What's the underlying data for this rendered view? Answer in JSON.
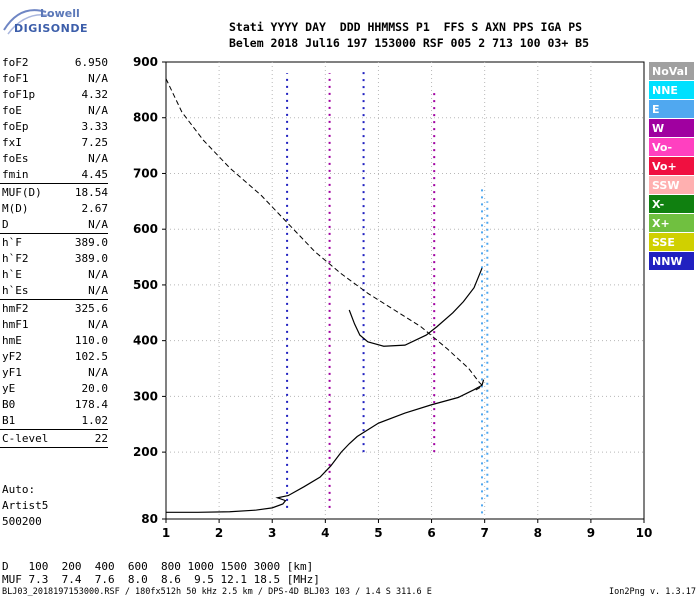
{
  "header": {
    "logo_top": "Lowell",
    "logo_bottom": "DIGISONDE",
    "line1": "Stati YYYY DAY  DDD HHMMSS P1  FFS S AXN PPS IGA PS",
    "line2": "Belem 2018 Jul16 197 153000 RSF 005 2 713 100 03+ B5"
  },
  "params": [
    {
      "label": "foF2",
      "value": "6.950"
    },
    {
      "label": "foF1",
      "value": "N/A"
    },
    {
      "label": "foF1p",
      "value": "4.32"
    },
    {
      "label": "foE",
      "value": "N/A"
    },
    {
      "label": "foEp",
      "value": "3.33"
    },
    {
      "label": "fxI",
      "value": "7.25"
    },
    {
      "label": "foEs",
      "value": "N/A"
    },
    {
      "label": "fmin",
      "value": "4.45"
    },
    {
      "sep": true
    },
    {
      "label": "MUF(D)",
      "value": "18.54"
    },
    {
      "label": "M(D)",
      "value": "2.67"
    },
    {
      "label": "D",
      "value": "N/A"
    },
    {
      "sep": true
    },
    {
      "label": "h`F",
      "value": "389.0"
    },
    {
      "label": "h`F2",
      "value": "389.0"
    },
    {
      "label": "h`E",
      "value": "N/A"
    },
    {
      "label": "h`Es",
      "value": "N/A"
    },
    {
      "sep": true
    },
    {
      "label": "hmF2",
      "value": "325.6"
    },
    {
      "label": "hmF1",
      "value": "N/A"
    },
    {
      "label": "hmE",
      "value": "110.0"
    },
    {
      "label": "yF2",
      "value": "102.5"
    },
    {
      "label": "yF1",
      "value": "N/A"
    },
    {
      "label": "yE",
      "value": "20.0"
    },
    {
      "label": "B0",
      "value": "178.4"
    },
    {
      "label": "B1",
      "value": "1.02"
    },
    {
      "sep": true
    },
    {
      "label": "C-level",
      "value": "22"
    },
    {
      "sep": true
    }
  ],
  "extra": {
    "auto": "Auto:",
    "artist": "Artist5",
    "version_code": "500200"
  },
  "legend": [
    {
      "label": "NoVal",
      "color": "#a0a0a0"
    },
    {
      "label": "NNE",
      "color": "#00e0ff"
    },
    {
      "label": "E",
      "color": "#50a8f0"
    },
    {
      "label": "W",
      "color": "#a000a0"
    },
    {
      "label": "Vo-",
      "color": "#ff40c0"
    },
    {
      "label": "Vo+",
      "color": "#f01040"
    },
    {
      "label": "SSW",
      "color": "#ffb0b0"
    },
    {
      "label": "X-",
      "color": "#108010"
    },
    {
      "label": "X+",
      "color": "#70c040"
    },
    {
      "label": "SSE",
      "color": "#d0d000"
    },
    {
      "label": "NNW",
      "color": "#2020c0"
    }
  ],
  "chart_data": {
    "type": "scatter",
    "x_ticks": [
      "1",
      "2",
      "3",
      "4",
      "5",
      "6",
      "7",
      "8",
      "9",
      "10"
    ],
    "y_ticks": [
      "80",
      "200",
      "300",
      "400",
      "500",
      "600",
      "700",
      "800",
      "900"
    ],
    "xlim": [
      1,
      10
    ],
    "ylim": [
      80,
      900
    ],
    "grid": true,
    "trace_solid": {
      "x": [
        1.0,
        1.6,
        2.2,
        2.7,
        3.0,
        3.2,
        3.25,
        3.1,
        3.3,
        3.6,
        3.9,
        4.1,
        4.3,
        4.45,
        4.6,
        5.0,
        5.5,
        6.0,
        6.5,
        6.8,
        6.95,
        6.98
      ],
      "y": [
        92,
        92,
        93,
        96,
        100,
        107,
        113,
        118,
        122,
        138,
        155,
        175,
        200,
        215,
        228,
        252,
        270,
        285,
        298,
        312,
        320,
        330
      ]
    },
    "trace_oplus": {
      "x": [
        4.45,
        4.55,
        4.65,
        4.8,
        5.1,
        5.5,
        5.9,
        6.1,
        6.4,
        6.6,
        6.8,
        6.95
      ],
      "y": [
        455,
        430,
        410,
        398,
        390,
        392,
        410,
        425,
        450,
        470,
        495,
        530
      ]
    },
    "profile_dashed": {
      "x": [
        1.0,
        1.3,
        1.7,
        2.2,
        2.8,
        3.3,
        3.8,
        4.3,
        4.8,
        5.3,
        5.8,
        6.3,
        6.7,
        6.9,
        6.95,
        6.9,
        6.8
      ],
      "y": [
        870,
        810,
        760,
        710,
        660,
        610,
        560,
        520,
        485,
        455,
        425,
        385,
        350,
        325,
        320,
        315,
        310
      ]
    },
    "echoes": [
      {
        "color": "#50a8f0",
        "x": 6.95,
        "y1": 90,
        "y2": 680
      },
      {
        "color": "#50a8f0",
        "x": 7.05,
        "y1": 120,
        "y2": 650
      },
      {
        "color": "#a000a0",
        "x": 6.05,
        "y1": 200,
        "y2": 850
      },
      {
        "color": "#2020c0",
        "x": 4.72,
        "y1": 200,
        "y2": 890
      },
      {
        "color": "#2020c0",
        "x": 3.28,
        "y1": 100,
        "y2": 880
      },
      {
        "color": "#a000a0",
        "x": 4.08,
        "y1": 100,
        "y2": 880
      }
    ]
  },
  "d_table": {
    "d_label": "D",
    "d_values": "100  200  400  600  800 1000 1500 3000 [km]",
    "muf_label": "MUF",
    "muf_values": "7.3  7.4  7.6  8.0  8.6  9.5 12.1 18.5 [MHz]"
  },
  "footer": {
    "left": "BLJ03_2018197153000.RSF / 180fx512h 50 kHz 2.5 km / DPS-4D BLJ03 103 / 1.4 S 311.6 E",
    "right": "Ion2Png v. 1.3.17"
  }
}
